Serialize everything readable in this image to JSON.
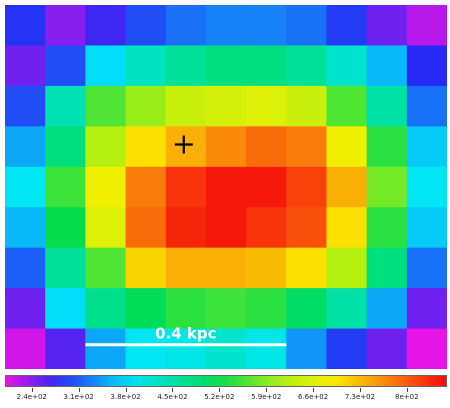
{
  "chart_data": {
    "type": "heatmap",
    "title": "",
    "xlabel": "",
    "ylabel": "",
    "grid": false,
    "colormap": "rainbow (magenta → blue → cyan → green → yellow → orange → red)",
    "vmin": 200,
    "vmax": 860,
    "rows": 9,
    "cols": 11,
    "values": [
      [
        285,
        240,
        270,
        300,
        320,
        330,
        330,
        320,
        290,
        250,
        220
      ],
      [
        250,
        300,
        380,
        430,
        460,
        480,
        480,
        460,
        420,
        360,
        280
      ],
      [
        300,
        440,
        560,
        600,
        640,
        650,
        660,
        640,
        560,
        450,
        320
      ],
      [
        350,
        480,
        620,
        700,
        740,
        770,
        790,
        780,
        680,
        540,
        370
      ],
      [
        390,
        550,
        680,
        780,
        830,
        850,
        850,
        820,
        740,
        580,
        390
      ],
      [
        360,
        520,
        660,
        790,
        840,
        850,
        830,
        810,
        700,
        540,
        370
      ],
      [
        310,
        460,
        560,
        710,
        740,
        740,
        730,
        700,
        620,
        480,
        320
      ],
      [
        250,
        380,
        470,
        510,
        540,
        550,
        540,
        500,
        450,
        350,
        250
      ],
      [
        210,
        260,
        350,
        390,
        400,
        420,
        400,
        340,
        290,
        250,
        200
      ]
    ],
    "marker": {
      "row": 3,
      "col": 4,
      "symbol": "+"
    },
    "scale_bar": {
      "label": "0.4 kpc",
      "length_in_cells": 5
    },
    "colorbar": {
      "tick_labels": [
        "2.4e+02",
        "3.1e+02",
        "3.8e+02",
        "4.5e+02",
        "5.2e+02",
        "5.9e+02",
        "6.6e+02",
        "7.3e+02",
        "8e+02"
      ],
      "tick_values": [
        240,
        310,
        380,
        450,
        520,
        590,
        660,
        730,
        800
      ]
    }
  }
}
